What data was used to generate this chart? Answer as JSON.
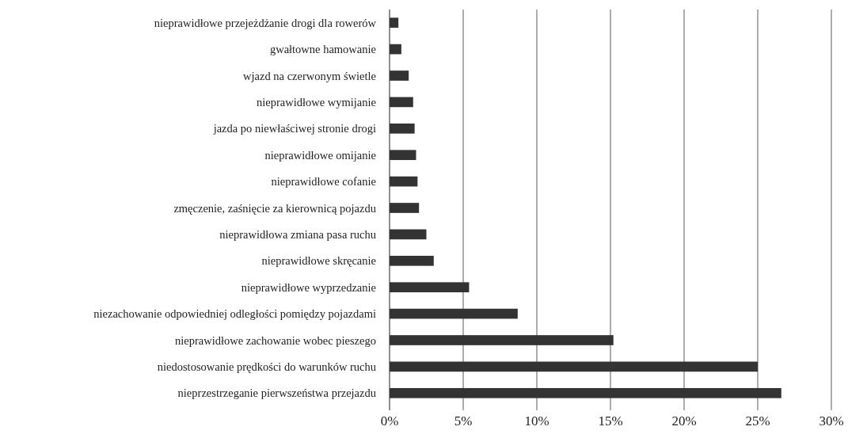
{
  "chart_data": {
    "type": "bar",
    "orientation": "horizontal",
    "categories": [
      "nieprawidłowe przejeżdżanie drogi dla rowerów",
      "gwałtowne hamowanie",
      "wjazd na czerwonym świetle",
      "nieprawidłowe wymijanie",
      "jazda po niewłaściwej stronie drogi",
      "nieprawidłowe omijanie",
      "nieprawidłowe cofanie",
      "zmęczenie, zaśnięcie za kierownicą pojazdu",
      "nieprawidłowa zmiana pasa ruchu",
      "nieprawidłowe skręcanie",
      "nieprawidłowe wyprzedzanie",
      "niezachowanie odpowiedniej odległości pomiędzy pojazdami",
      "nieprawidłowe zachowanie wobec pieszego",
      "niedostosowanie prędkości do warunków ruchu",
      "nieprzestrzeganie pierwszeństwa przejazdu"
    ],
    "values": [
      0.6,
      0.8,
      1.3,
      1.6,
      1.7,
      1.8,
      1.9,
      2.0,
      2.5,
      3.0,
      5.4,
      8.7,
      15.2,
      25.0,
      26.6
    ],
    "color": "#333333",
    "xlim": [
      0,
      30
    ],
    "xticks": [
      {
        "value": 0,
        "label": "0%"
      },
      {
        "value": 5,
        "label": "5%"
      },
      {
        "value": 10,
        "label": "10%"
      },
      {
        "value": 15,
        "label": "15%"
      },
      {
        "value": 20,
        "label": "20%"
      },
      {
        "value": 25,
        "label": "25%"
      },
      {
        "value": 30,
        "label": "30%"
      }
    ],
    "grid": "x"
  }
}
